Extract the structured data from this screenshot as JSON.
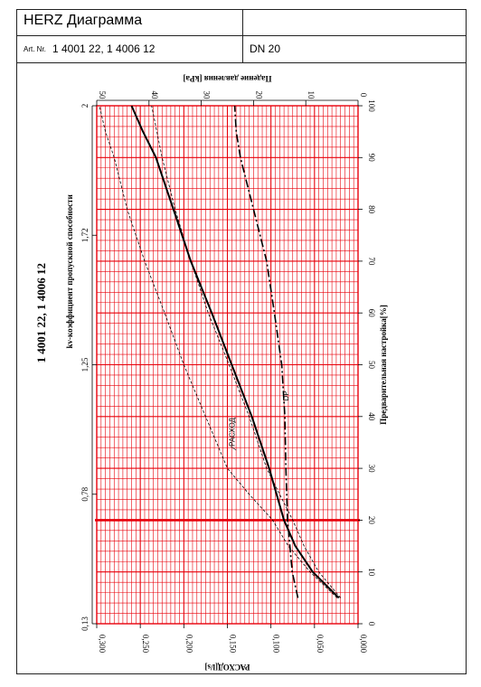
{
  "header": {
    "title": "HERZ Диаграмма",
    "art_label": "Art. Nr.",
    "art_numbers": "1 4001 22, 1 4006 12",
    "dn": "DN 20"
  },
  "chart_data": {
    "type": "line",
    "title": "1 4001 22, 1 4006 12",
    "kv_axis": {
      "label": "kv-коэффициент пропускной способности",
      "ticks": [
        "2",
        "1,72",
        "1,25",
        "0,78",
        "0,13"
      ]
    },
    "pressure_axis": {
      "label": "Падение давления [kPa]",
      "range": [
        0,
        50
      ],
      "ticks": [
        50,
        40,
        30,
        20,
        10,
        0
      ]
    },
    "setting_axis": {
      "label": "Предварительная настройка[%]",
      "range": [
        0,
        100
      ],
      "ticks": [
        100,
        90,
        80,
        70,
        60,
        50,
        40,
        30,
        20,
        10,
        0
      ]
    },
    "flow_axis": {
      "label": "РАСХОД[l/s]",
      "range": [
        0,
        0.3
      ],
      "ticks": [
        "0,300",
        "0,250",
        "0,200",
        "0,150",
        "0,100",
        "0,050",
        "0,000"
      ]
    },
    "highlight_setting": 20,
    "series": [
      {
        "name": "РАСХОД",
        "style": "solid",
        "flow_ls": [
          0.022,
          0.052,
          0.072,
          0.085,
          0.102,
          0.122,
          0.145,
          0.168,
          0.192,
          0.212,
          0.232,
          0.247,
          0.26
        ],
        "setting_pct": [
          5,
          10,
          15,
          20,
          30,
          40,
          50,
          60,
          70,
          80,
          90,
          95,
          100
        ]
      },
      {
        "style": "dashed-thin",
        "flow_ls": [
          0.02,
          0.045,
          0.062,
          0.075,
          0.09,
          0.105,
          0.125,
          0.148,
          0.172,
          0.192,
          0.21,
          0.225,
          0.237
        ],
        "setting_pct": [
          5,
          10,
          15,
          20,
          25,
          30,
          40,
          50,
          60,
          70,
          80,
          90,
          100
        ]
      },
      {
        "style": "dashed-thin",
        "flow_ls": [
          0.024,
          0.055,
          0.08,
          0.098,
          0.125,
          0.15,
          0.175,
          0.2,
          0.222,
          0.245,
          0.265,
          0.28,
          0.29,
          0.297
        ],
        "setting_pct": [
          5,
          10,
          15,
          20,
          25,
          30,
          40,
          50,
          60,
          70,
          80,
          90,
          95,
          100
        ]
      },
      {
        "name": "DP",
        "style": "dash-dot",
        "pressure_kpa": [
          11.5,
          12.6,
          13.5,
          13.8,
          14.0,
          14.6,
          16.0,
          17.5,
          20.0,
          22.5,
          23.3,
          23.6
        ],
        "setting_pct": [
          5,
          10,
          20,
          30,
          40,
          50,
          60,
          70,
          80,
          90,
          95,
          100
        ]
      }
    ],
    "annotations": [
      "РАСХОД",
      "DP"
    ],
    "grid": true
  },
  "colors": {
    "grid": "#e8000a",
    "curve": "#000000",
    "border": "#222222"
  }
}
